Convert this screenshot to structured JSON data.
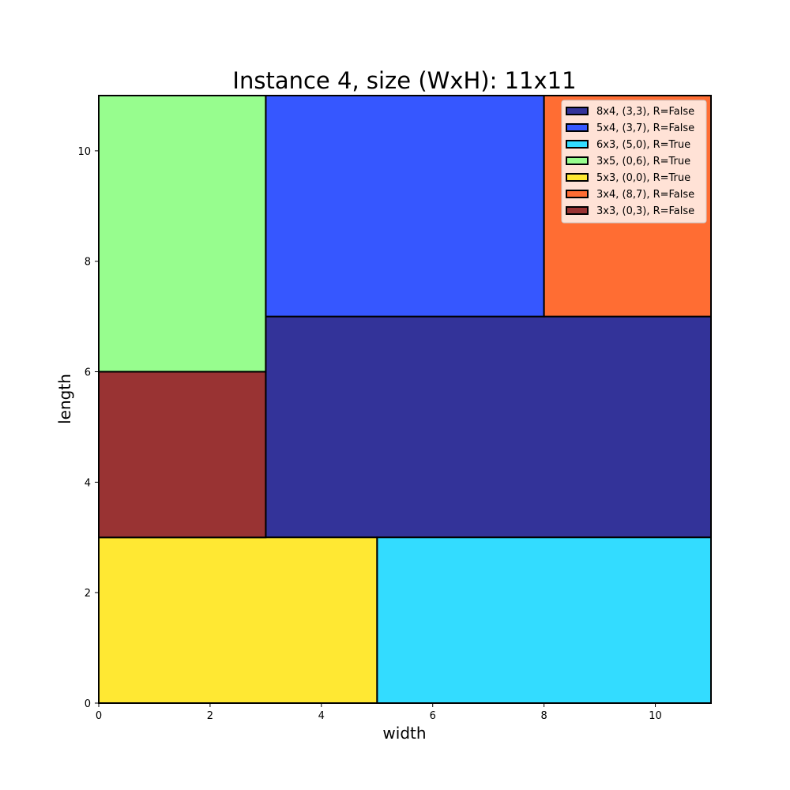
{
  "chart_data": {
    "type": "rectangle-packing",
    "title": "Instance 4, size (WxH): 11x11",
    "xlabel": "width",
    "ylabel": "length",
    "xlim": [
      0,
      11
    ],
    "ylim": [
      0,
      11
    ],
    "xticks": [
      0,
      2,
      4,
      6,
      8,
      10
    ],
    "yticks": [
      0,
      2,
      4,
      6,
      8,
      10
    ],
    "grid": false,
    "legend_position": "top-right",
    "rectangles": [
      {
        "label": "8x4, (3,3), R=False",
        "x": 3,
        "y": 3,
        "w": 8,
        "h": 4,
        "color": "#333399"
      },
      {
        "label": "5x4, (3,7), R=False",
        "x": 3,
        "y": 7,
        "w": 5,
        "h": 4,
        "color": "#3657ff"
      },
      {
        "label": "6x3, (5,0), R=True",
        "x": 5,
        "y": 0,
        "w": 6,
        "h": 3,
        "color": "#33dcff"
      },
      {
        "label": "3x5, (0,6), R=True",
        "x": 0,
        "y": 6,
        "w": 3,
        "h": 5,
        "color": "#97fd8e"
      },
      {
        "label": "5x3, (0,0), R=True",
        "x": 0,
        "y": 0,
        "w": 5,
        "h": 3,
        "color": "#ffe833"
      },
      {
        "label": "3x4, (8,7), R=False",
        "x": 8,
        "y": 7,
        "w": 3,
        "h": 4,
        "color": "#ff6d33"
      },
      {
        "label": "3x3, (0,3), R=False",
        "x": 0,
        "y": 3,
        "w": 3,
        "h": 3,
        "color": "#993333"
      }
    ]
  }
}
